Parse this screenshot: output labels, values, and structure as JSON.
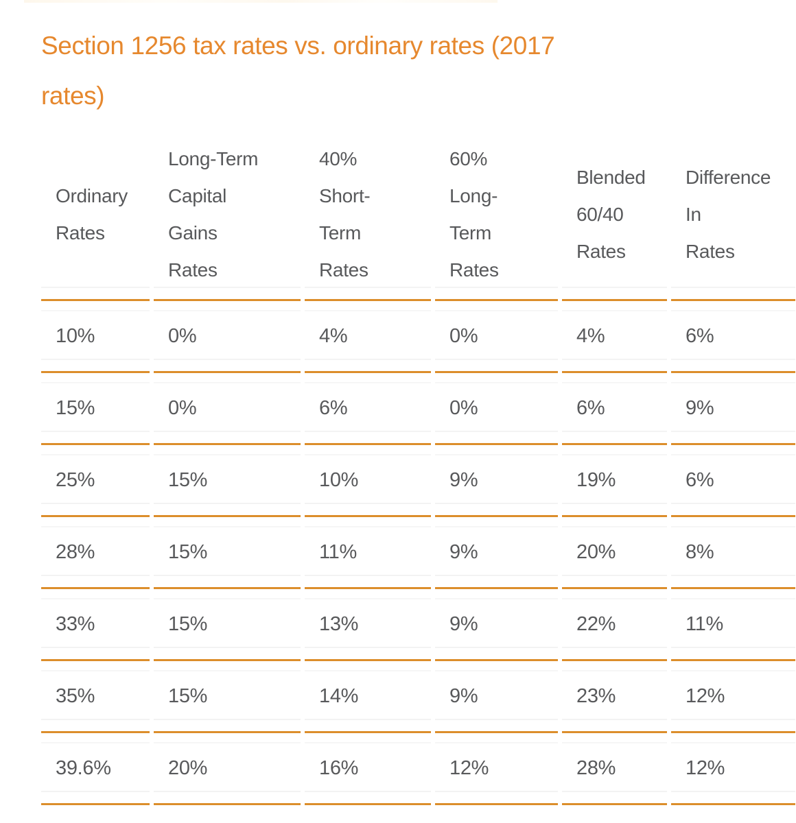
{
  "page": {
    "title": "Section 1256 tax rates vs. ordinary rates (2017 rates)",
    "title_lines": [
      "Section 1256 tax rates vs. ordinary rates (2017",
      "rates)"
    ]
  },
  "colors": {
    "title_orange": "#e6882e",
    "rule_orange": "#dc8e2b",
    "text_gray": "#58595b",
    "background": "#ffffff"
  },
  "table": {
    "column_headers": [
      "Ordinary Rates",
      "Long-Term Capital Gains Rates",
      "40% Short-Term Rates",
      "60% Long-Term Rates",
      "Blended 60/40 Rates",
      "Difference In Rates"
    ],
    "column_header_lines": [
      [
        "Ordinary",
        "Rates"
      ],
      [
        "Long-Term",
        "Capital",
        "Gains",
        "Rates"
      ],
      [
        "40%",
        "Short-",
        "Term",
        "Rates"
      ],
      [
        "60%",
        "Long-",
        "Term",
        "Rates"
      ],
      [
        "Blended",
        "60/40",
        "Rates"
      ],
      [
        "Difference",
        "In",
        "Rates"
      ]
    ],
    "rows": [
      [
        "10%",
        "0%",
        "4%",
        "0%",
        "4%",
        "6%"
      ],
      [
        "15%",
        "0%",
        "6%",
        "0%",
        "6%",
        "9%"
      ],
      [
        "25%",
        "15%",
        "10%",
        "9%",
        "19%",
        "6%"
      ],
      [
        "28%",
        "15%",
        "11%",
        "9%",
        "20%",
        "8%"
      ],
      [
        "33%",
        "15%",
        "13%",
        "9%",
        "22%",
        "11%"
      ],
      [
        "35%",
        "15%",
        "14%",
        "9%",
        "23%",
        "12%"
      ],
      [
        "39.6%",
        "20%",
        "16%",
        "12%",
        "28%",
        "12%"
      ]
    ]
  },
  "chart_data": {
    "type": "table",
    "title": "Section 1256 tax rates vs. ordinary rates (2017 rates)",
    "columns": [
      "Ordinary Rates",
      "Long-Term Capital Gains Rates",
      "40% Short-Term Rates",
      "60% Long-Term Rates",
      "Blended 60/40 Rates",
      "Difference In Rates"
    ],
    "rows": [
      [
        "10%",
        "0%",
        "4%",
        "0%",
        "4%",
        "6%"
      ],
      [
        "15%",
        "0%",
        "6%",
        "0%",
        "6%",
        "9%"
      ],
      [
        "25%",
        "15%",
        "10%",
        "9%",
        "19%",
        "6%"
      ],
      [
        "28%",
        "15%",
        "11%",
        "9%",
        "20%",
        "8%"
      ],
      [
        "33%",
        "15%",
        "13%",
        "9%",
        "22%",
        "11%"
      ],
      [
        "35%",
        "15%",
        "14%",
        "9%",
        "23%",
        "12%"
      ],
      [
        "39.6%",
        "20%",
        "16%",
        "12%",
        "28%",
        "12%"
      ]
    ]
  }
}
